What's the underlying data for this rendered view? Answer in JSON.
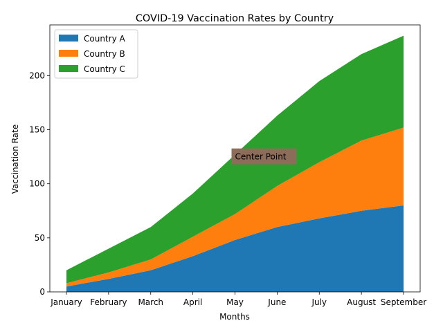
{
  "chart_data": {
    "type": "area",
    "stacked": true,
    "title": "COVID-19 Vaccination Rates by Country",
    "xlabel": "Months",
    "ylabel": "Vaccination Rate",
    "categories": [
      "January",
      "February",
      "March",
      "April",
      "May",
      "June",
      "July",
      "August",
      "September"
    ],
    "series": [
      {
        "name": "Country A",
        "color": "#1f77b4",
        "values": [
          5,
          12,
          20,
          33,
          48,
          60,
          68,
          75,
          80
        ]
      },
      {
        "name": "Country B",
        "color": "#ff7f0e",
        "values": [
          3,
          6,
          10,
          18,
          24,
          38,
          52,
          65,
          72
        ]
      },
      {
        "name": "Country C",
        "color": "#2ca02c",
        "values": [
          12,
          22,
          30,
          40,
          55,
          65,
          75,
          80,
          85
        ]
      }
    ],
    "ylim": [
      0,
      247
    ],
    "yticks": [
      0,
      50,
      100,
      150,
      200
    ],
    "legend_position": "top-left",
    "grid": false,
    "annotation": {
      "text": "Center Point",
      "x_index": 4,
      "y": 125,
      "box_color": "#8c6d5a"
    }
  }
}
